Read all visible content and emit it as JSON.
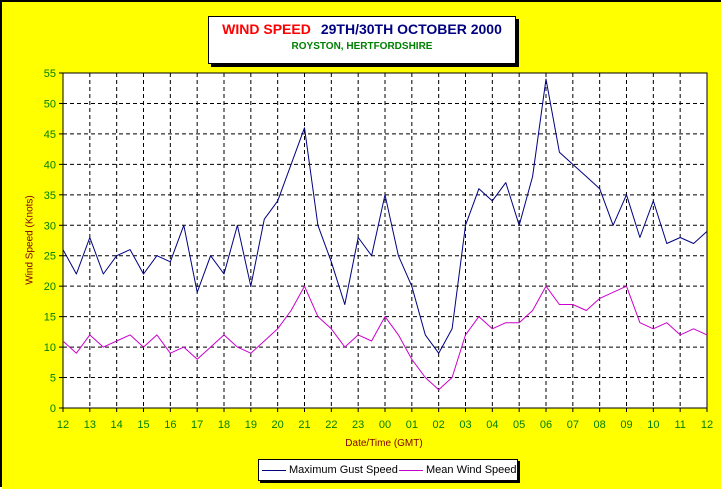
{
  "colors": {
    "background": "#ffff00",
    "plot_background": "#ffffff",
    "grid": "#000000",
    "tick_text": "#008000",
    "axis_title": "#800000",
    "title_red": "#ff0000",
    "title_blue": "#000080",
    "subtitle_green": "#008000"
  },
  "chart_data": {
    "type": "line",
    "title_part1": "WIND SPEED",
    "title_part2": "29TH/30TH OCTOBER 2000",
    "subtitle": "ROYSTON, HERTFORDSHIRE",
    "xlabel": "Date/Time (GMT)",
    "ylabel": "Wind Speed (Knots)",
    "ylim": [
      0,
      55
    ],
    "yticks": [
      0,
      5,
      10,
      15,
      20,
      25,
      30,
      35,
      40,
      45,
      50,
      55
    ],
    "x_tick_labels": [
      "12",
      "13",
      "14",
      "15",
      "16",
      "17",
      "18",
      "19",
      "20",
      "21",
      "22",
      "23",
      "00",
      "01",
      "02",
      "03",
      "04",
      "05",
      "06",
      "07",
      "08",
      "09",
      "10",
      "11",
      "12"
    ],
    "x_unit": "hours elapsed from 12:00 GMT 29 Oct 2000",
    "grid": true,
    "legend_position": "bottom",
    "series": [
      {
        "name": "Maximum Gust Speed",
        "color": "#000080",
        "x": [
          0,
          0.5,
          1,
          1.5,
          2,
          2.5,
          3,
          3.5,
          4,
          4.5,
          5,
          5.5,
          6,
          6.5,
          7,
          7.5,
          8,
          8.5,
          9,
          9.5,
          10,
          10.5,
          11,
          11.5,
          12,
          12.5,
          13,
          13.5,
          14,
          14.5,
          15,
          15.5,
          16,
          16.5,
          17,
          17.5,
          18,
          18.5,
          19,
          19.5,
          20,
          20.5,
          21,
          21.5,
          22,
          22.5,
          23,
          23.5,
          24
        ],
        "values": [
          26,
          22,
          28,
          22,
          25,
          26,
          22,
          25,
          24,
          30,
          19,
          25,
          22,
          30,
          20,
          31,
          34,
          40,
          46,
          30,
          24,
          17,
          28,
          25,
          35,
          25,
          20,
          12,
          9,
          13,
          30,
          36,
          34,
          37,
          30,
          38,
          54,
          42,
          40,
          38,
          36,
          30,
          35,
          28,
          34,
          27,
          28,
          27,
          29
        ]
      },
      {
        "name": "Mean Wind Speed",
        "color": "#cc00cc",
        "x": [
          0,
          0.5,
          1,
          1.5,
          2,
          2.5,
          3,
          3.5,
          4,
          4.5,
          5,
          5.5,
          6,
          6.5,
          7,
          7.5,
          8,
          8.5,
          9,
          9.5,
          10,
          10.5,
          11,
          11.5,
          12,
          12.5,
          13,
          13.5,
          14,
          14.5,
          15,
          15.5,
          16,
          16.5,
          17,
          17.5,
          18,
          18.5,
          19,
          19.5,
          20,
          20.5,
          21,
          21.5,
          22,
          22.5,
          23,
          23.5,
          24
        ],
        "values": [
          11,
          9,
          12,
          10,
          11,
          12,
          10,
          12,
          9,
          10,
          8,
          10,
          12,
          10,
          9,
          11,
          13,
          16,
          20,
          15,
          13,
          10,
          12,
          11,
          15,
          12,
          8,
          5,
          3,
          5,
          12,
          15,
          13,
          14,
          14,
          16,
          20,
          17,
          17,
          16,
          18,
          19,
          20,
          14,
          13,
          14,
          12,
          13,
          12
        ]
      }
    ]
  }
}
